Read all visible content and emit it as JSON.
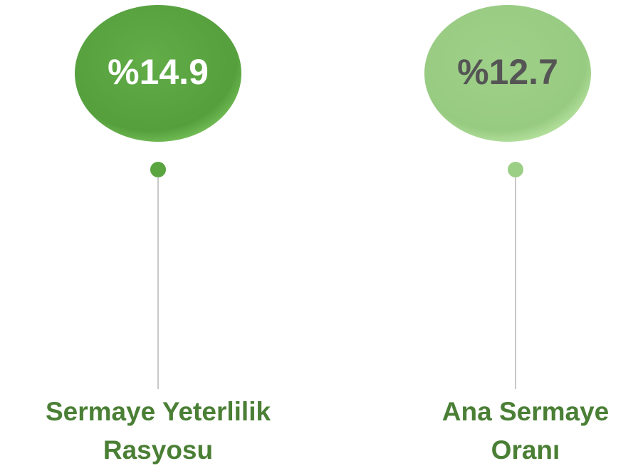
{
  "items": [
    {
      "value": "%14.9",
      "label_lines": [
        "Sermaye Yeterlilik",
        "Rasyosu"
      ]
    },
    {
      "value": "%12.7",
      "label_lines": [
        "Ana Sermaye",
        "Oranı"
      ]
    }
  ]
}
